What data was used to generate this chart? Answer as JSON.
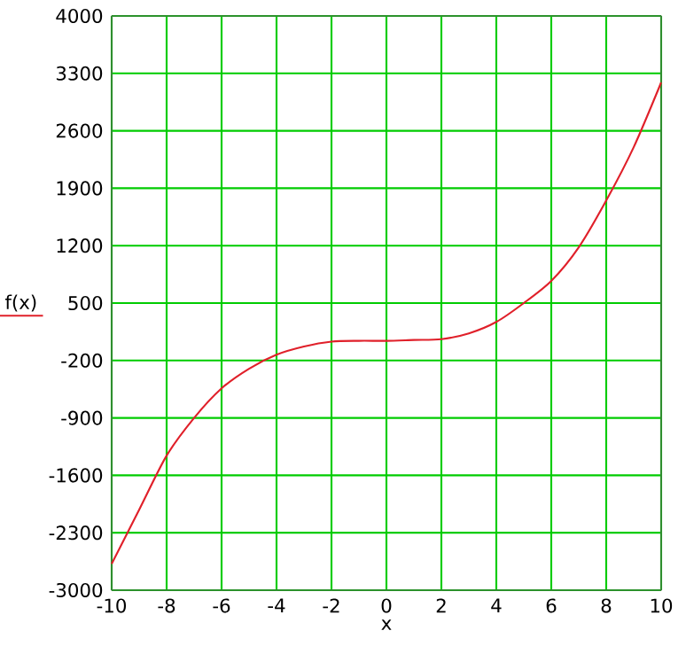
{
  "chart_data": {
    "type": "line",
    "xlabel": "x",
    "ylabel": "f(x)",
    "series": [
      {
        "color": "#e0202a",
        "x": [
          -10,
          -9,
          -8,
          -7,
          -6,
          -5,
          -4,
          -3,
          -2,
          -1,
          0,
          1,
          2,
          3,
          4,
          5,
          6,
          7,
          8,
          9,
          10
        ],
        "values": [
          -2680,
          -2020,
          -1360,
          -900,
          -540,
          -300,
          -130,
          -30,
          30,
          40,
          40,
          50,
          60,
          130,
          270,
          500,
          770,
          1180,
          1750,
          2400,
          3190
        ]
      }
    ],
    "xlim": [
      -10,
      10
    ],
    "ylim": [
      -3000,
      4000
    ],
    "xticks": [
      -10,
      -8,
      -6,
      -4,
      -2,
      0,
      2,
      4,
      6,
      8,
      10
    ],
    "yticks": [
      -3000,
      -2300,
      -1600,
      -900,
      -200,
      500,
      1200,
      1900,
      2600,
      3300,
      4000
    ],
    "grid": true,
    "legend": false,
    "marker": "none",
    "line_style": "solid"
  }
}
